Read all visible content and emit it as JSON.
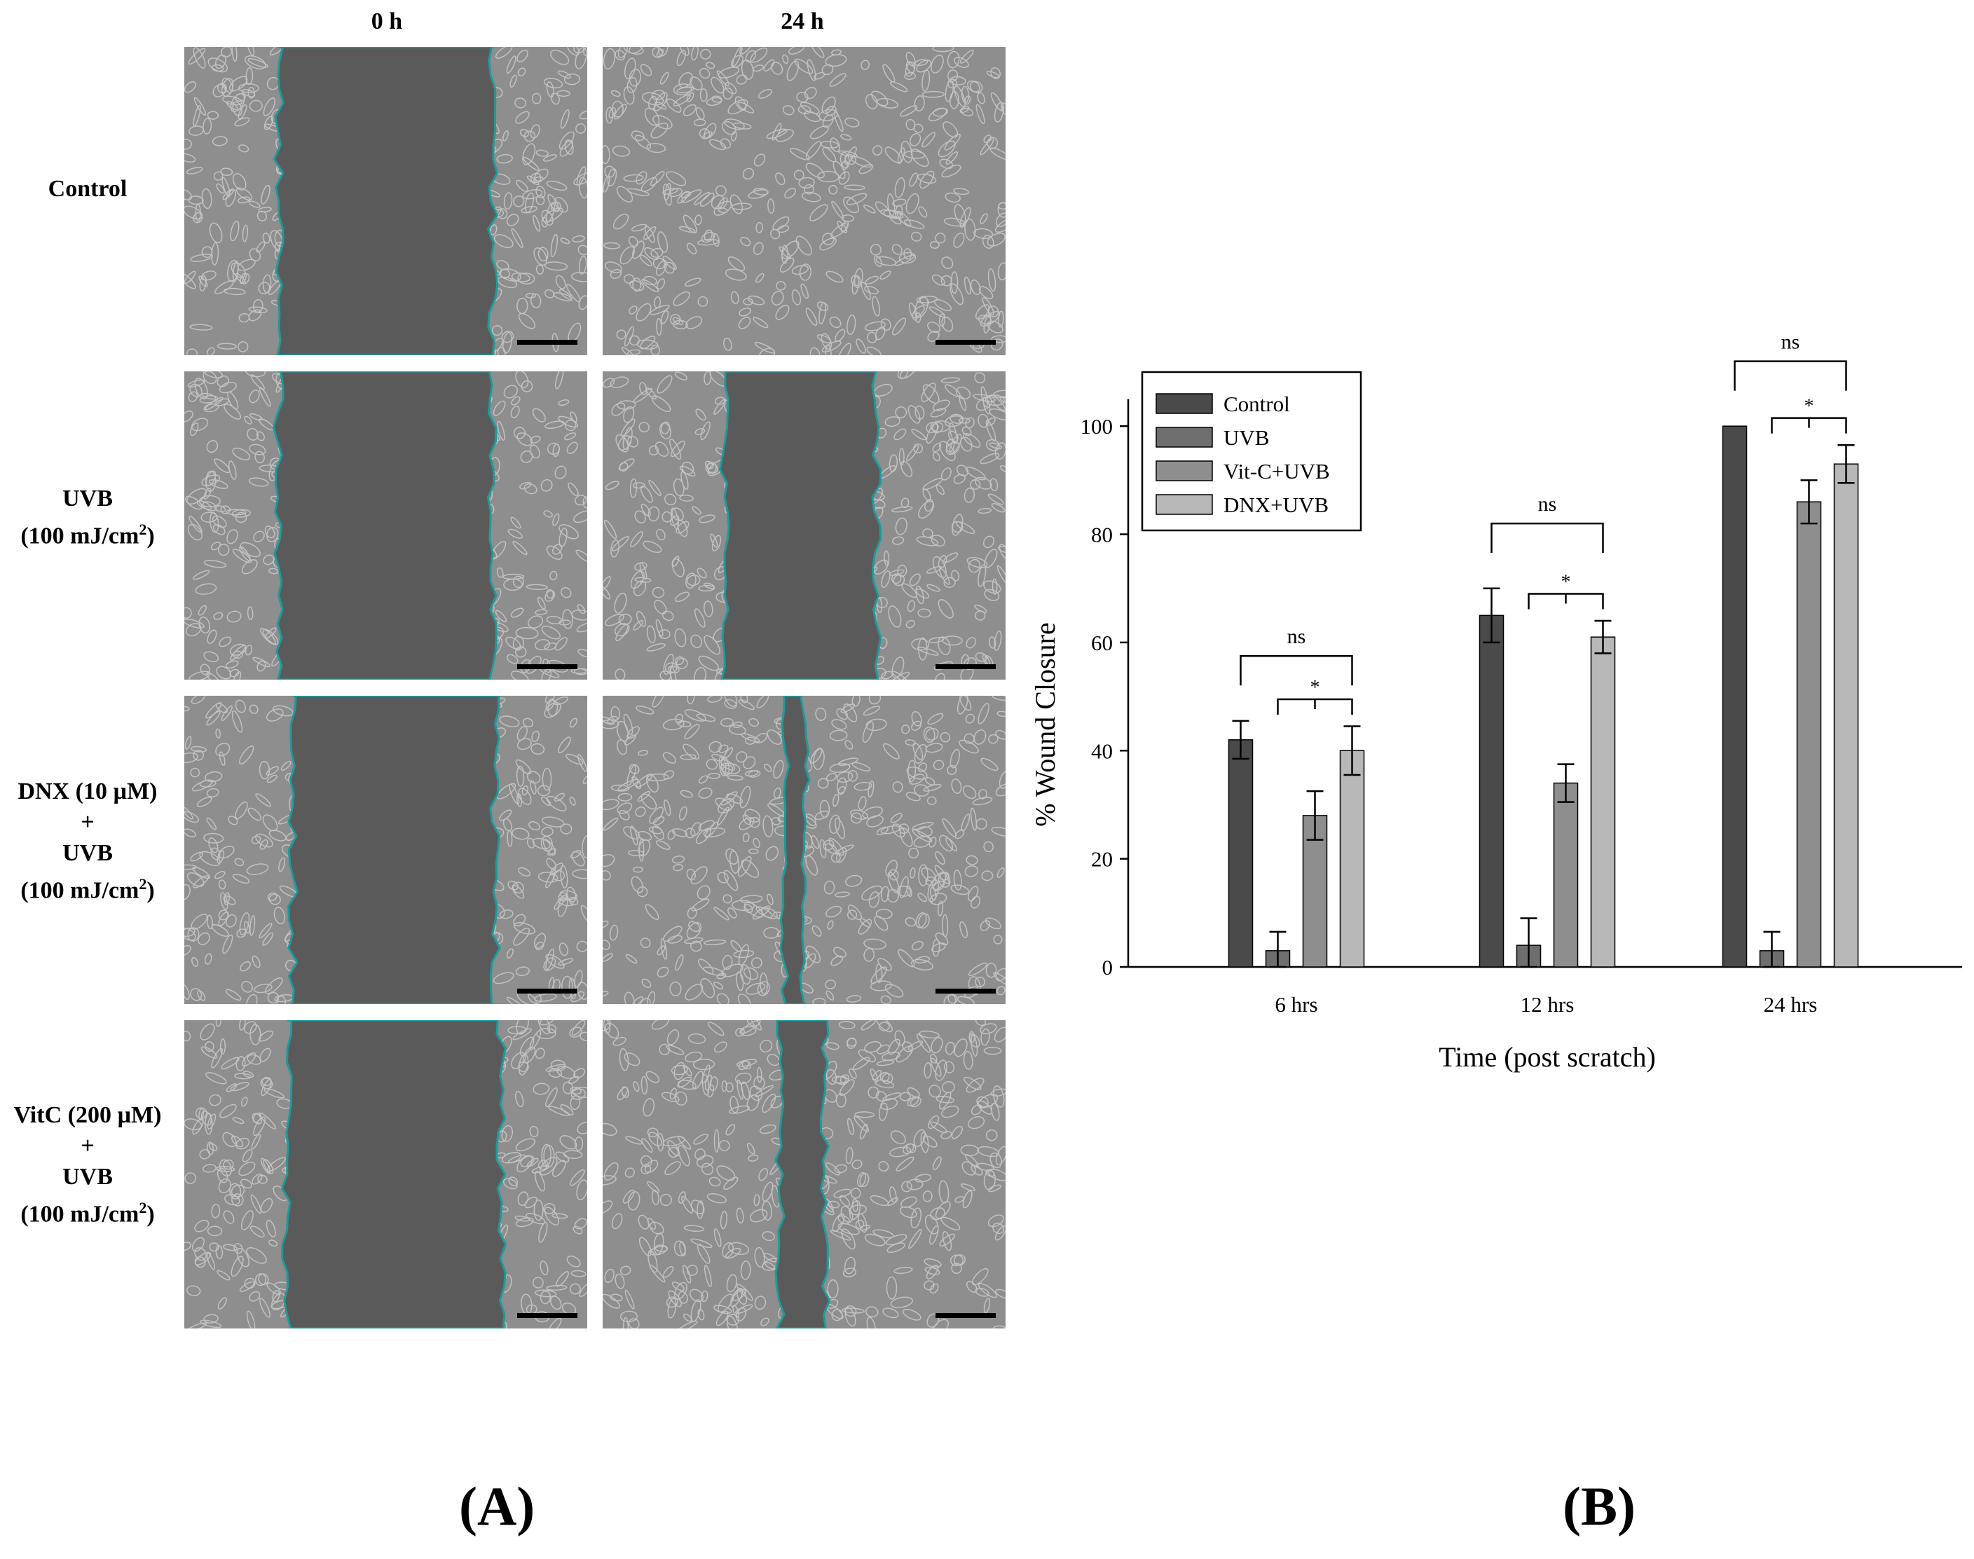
{
  "panel_a": {
    "columns": [
      "0 h",
      "24 h"
    ],
    "rows": [
      {
        "label_lines": [
          "Control"
        ],
        "gap_0h": 0.85,
        "gap_24h": 0.0
      },
      {
        "label_lines": [
          "UVB",
          "(100 mJ/cm",
          "2",
          ")"
        ],
        "gap_0h": 0.85,
        "gap_24h": 0.6
      },
      {
        "label_lines": [
          "DNX (10 µM)",
          "+",
          "UVB",
          "(100 mJ/cm",
          "2",
          ")"
        ],
        "gap_0h": 0.8,
        "gap_24h": 0.08
      },
      {
        "label_lines": [
          "VitC (200 µM)",
          "+",
          "UVB",
          "(100 mJ/cm",
          "2",
          ")"
        ],
        "gap_0h": 0.85,
        "gap_24h": 0.18
      }
    ],
    "colors": {
      "cell_bg": "#8e8e8e",
      "wound": "#5a5a5a",
      "outline": "#1f9a9a"
    }
  },
  "labels": {
    "panel_a": "(A)",
    "panel_b": "(B)"
  },
  "chart_data": {
    "type": "bar",
    "categories": [
      "6 hrs",
      "12 hrs",
      "24 hrs"
    ],
    "series": [
      {
        "name": "Control",
        "values": [
          42,
          65,
          100
        ],
        "errors": [
          3.5,
          5,
          0
        ],
        "color": "#4a4a4a"
      },
      {
        "name": "UVB",
        "values": [
          3,
          4,
          3
        ],
        "errors": [
          3.5,
          5,
          3.5
        ],
        "color": "#6e6e6e"
      },
      {
        "name": "Vit-C+UVB",
        "values": [
          28,
          34,
          86
        ],
        "errors": [
          4.5,
          3.5,
          4
        ],
        "color": "#8e8e8e"
      },
      {
        "name": "DNX+UVB",
        "values": [
          40,
          61,
          93
        ],
        "errors": [
          4.5,
          3,
          3.5
        ],
        "color": "#b8b8b8"
      }
    ],
    "xlabel": "Time (post scratch)",
    "ylabel": "% Wound Closure",
    "ylim": [
      0,
      110
    ],
    "yticks": [
      0,
      20,
      40,
      60,
      80,
      100
    ],
    "legend": "top-left",
    "annotations": [
      {
        "text": "ns",
        "category": "6 hrs",
        "from_series": 0,
        "to_series": 3
      },
      {
        "text": "*",
        "category": "6 hrs",
        "from_series": 1,
        "to_series": 3
      },
      {
        "text": "ns",
        "category": "12 hrs",
        "from_series": 0,
        "to_series": 3
      },
      {
        "text": "*",
        "category": "12 hrs",
        "from_series": 1,
        "to_series": 3
      },
      {
        "text": "ns",
        "category": "24 hrs",
        "from_series": 0,
        "to_series": 3
      },
      {
        "text": "*",
        "category": "24 hrs",
        "from_series": 1,
        "to_series": 3
      }
    ]
  }
}
